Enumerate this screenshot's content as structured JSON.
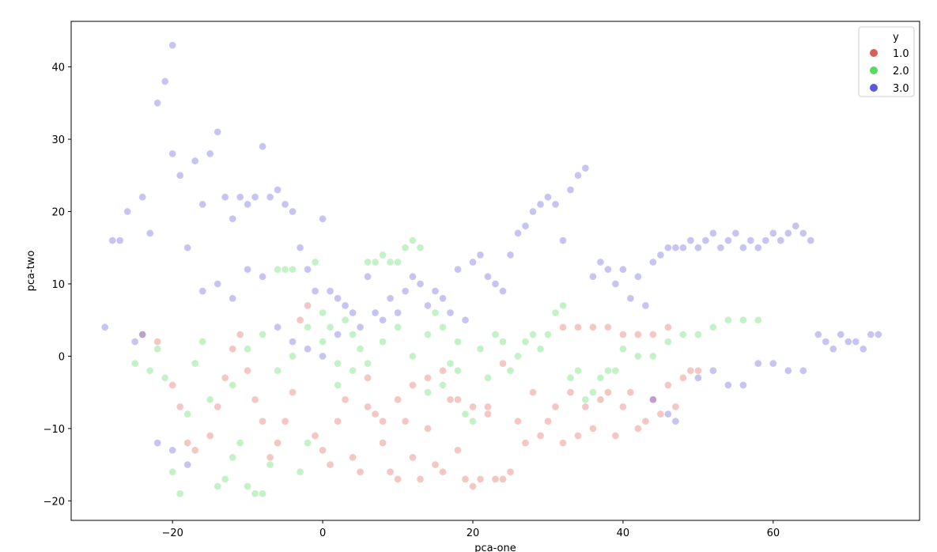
{
  "chart_data": {
    "type": "scatter",
    "title": "",
    "xlabel": "pca-one",
    "ylabel": "pca-two",
    "xlim": [
      -33.5,
      79.5
    ],
    "ylim": [
      -22.7,
      46.3
    ],
    "xticks": [
      -20,
      0,
      20,
      40,
      60
    ],
    "yticks": [
      -20,
      -10,
      0,
      10,
      20,
      30,
      40
    ],
    "grid": false,
    "legend": {
      "title": "y",
      "placement": "top-right",
      "entries": [
        "1.0",
        "2.0",
        "3.0"
      ]
    },
    "colors": {
      "1.0": "#db5f57",
      "2.0": "#57db5f",
      "3.0": "#5f57db"
    },
    "series": [
      {
        "name": "1.0",
        "points": [
          [
            -24,
            3
          ],
          [
            -22,
            2
          ],
          [
            -20,
            -4
          ],
          [
            -19,
            -7
          ],
          [
            -18,
            -12
          ],
          [
            -17,
            -13
          ],
          [
            -15,
            -11
          ],
          [
            -14,
            -7
          ],
          [
            -13,
            -3
          ],
          [
            -12,
            1
          ],
          [
            -11,
            3
          ],
          [
            -10,
            -2
          ],
          [
            -9,
            -6
          ],
          [
            -8,
            -9
          ],
          [
            -7,
            -14
          ],
          [
            -6,
            -12
          ],
          [
            -5,
            -9
          ],
          [
            -4,
            -5
          ],
          [
            -3,
            5
          ],
          [
            -2,
            7
          ],
          [
            -1,
            -11
          ],
          [
            0,
            -13
          ],
          [
            1,
            -15
          ],
          [
            2,
            -9
          ],
          [
            3,
            -6
          ],
          [
            4,
            -14
          ],
          [
            5,
            -16
          ],
          [
            6,
            -7
          ],
          [
            7,
            -8
          ],
          [
            8,
            -12
          ],
          [
            9,
            -16
          ],
          [
            10,
            -17
          ],
          [
            11,
            -9
          ],
          [
            12,
            -14
          ],
          [
            13,
            -17
          ],
          [
            14,
            -10
          ],
          [
            15,
            -15
          ],
          [
            16,
            -16
          ],
          [
            17,
            -6
          ],
          [
            18,
            -13
          ],
          [
            19,
            -17
          ],
          [
            20,
            -18
          ],
          [
            21,
            -17
          ],
          [
            22,
            -8
          ],
          [
            23,
            -17
          ],
          [
            24,
            -17
          ],
          [
            25,
            -16
          ],
          [
            26,
            -9
          ],
          [
            27,
            -12
          ],
          [
            28,
            -5
          ],
          [
            29,
            -11
          ],
          [
            30,
            -9
          ],
          [
            31,
            -7
          ],
          [
            32,
            -12
          ],
          [
            33,
            -5
          ],
          [
            34,
            -11
          ],
          [
            35,
            -7
          ],
          [
            36,
            -10
          ],
          [
            37,
            -6
          ],
          [
            38,
            -5
          ],
          [
            39,
            -11
          ],
          [
            40,
            -7
          ],
          [
            41,
            -5
          ],
          [
            42,
            -10
          ],
          [
            43,
            -9
          ],
          [
            44,
            -6
          ],
          [
            45,
            -8
          ],
          [
            46,
            -4
          ],
          [
            47,
            -7
          ],
          [
            48,
            -3
          ],
          [
            49,
            -2
          ],
          [
            50,
            -2
          ],
          [
            32,
            4
          ],
          [
            34,
            4
          ],
          [
            36,
            4
          ],
          [
            38,
            4
          ],
          [
            40,
            3
          ],
          [
            42,
            3
          ],
          [
            44,
            3
          ],
          [
            46,
            4
          ],
          [
            10,
            -6
          ],
          [
            12,
            -4
          ],
          [
            14,
            -3
          ],
          [
            16,
            -2
          ],
          [
            18,
            -6
          ],
          [
            20,
            -7
          ],
          [
            22,
            -7
          ],
          [
            24,
            -1
          ],
          [
            6,
            -3
          ],
          [
            8,
            -9
          ]
        ]
      },
      {
        "name": "2.0",
        "points": [
          [
            -25,
            -1
          ],
          [
            -23,
            -2
          ],
          [
            -22,
            1
          ],
          [
            -21,
            -3
          ],
          [
            -20,
            -16
          ],
          [
            -19,
            -19
          ],
          [
            -18,
            -8
          ],
          [
            -17,
            -1
          ],
          [
            -16,
            2
          ],
          [
            -15,
            -6
          ],
          [
            -14,
            -18
          ],
          [
            -13,
            -17
          ],
          [
            -12,
            -14
          ],
          [
            -11,
            -12
          ],
          [
            -10,
            -18
          ],
          [
            -9,
            -19
          ],
          [
            -8,
            -19
          ],
          [
            -7,
            -15
          ],
          [
            -6,
            12
          ],
          [
            -5,
            12
          ],
          [
            -4,
            12
          ],
          [
            -3,
            -16
          ],
          [
            -2,
            -12
          ],
          [
            -1,
            13
          ],
          [
            0,
            2
          ],
          [
            1,
            4
          ],
          [
            2,
            -1
          ],
          [
            3,
            5
          ],
          [
            4,
            -2
          ],
          [
            5,
            1
          ],
          [
            6,
            13
          ],
          [
            7,
            13
          ],
          [
            8,
            14
          ],
          [
            9,
            13
          ],
          [
            10,
            13
          ],
          [
            11,
            15
          ],
          [
            12,
            16
          ],
          [
            13,
            15
          ],
          [
            14,
            3
          ],
          [
            15,
            6
          ],
          [
            16,
            -4
          ],
          [
            17,
            -1
          ],
          [
            18,
            2
          ],
          [
            19,
            -8
          ],
          [
            20,
            -9
          ],
          [
            21,
            1
          ],
          [
            22,
            -3
          ],
          [
            23,
            3
          ],
          [
            24,
            2
          ],
          [
            25,
            -2
          ],
          [
            26,
            0
          ],
          [
            27,
            2
          ],
          [
            28,
            3
          ],
          [
            29,
            1
          ],
          [
            30,
            3
          ],
          [
            31,
            6
          ],
          [
            32,
            7
          ],
          [
            33,
            -3
          ],
          [
            34,
            -2
          ],
          [
            35,
            -6
          ],
          [
            36,
            -5
          ],
          [
            37,
            -3
          ],
          [
            38,
            -2
          ],
          [
            39,
            -2
          ],
          [
            40,
            1
          ],
          [
            42,
            0
          ],
          [
            44,
            0
          ],
          [
            46,
            2
          ],
          [
            48,
            3
          ],
          [
            50,
            3
          ],
          [
            52,
            4
          ],
          [
            54,
            5
          ],
          [
            56,
            5
          ],
          [
            58,
            5
          ],
          [
            -10,
            1
          ],
          [
            -8,
            3
          ],
          [
            -6,
            -2
          ],
          [
            -4,
            0
          ],
          [
            -2,
            4
          ],
          [
            0,
            6
          ],
          [
            2,
            -4
          ],
          [
            4,
            3
          ],
          [
            6,
            -1
          ],
          [
            8,
            2
          ],
          [
            10,
            4
          ],
          [
            12,
            0
          ],
          [
            14,
            -5
          ],
          [
            16,
            4
          ],
          [
            18,
            -2
          ],
          [
            -12,
            -4
          ]
        ]
      },
      {
        "name": "3.0",
        "points": [
          [
            -29,
            4
          ],
          [
            -28,
            16
          ],
          [
            -27,
            16
          ],
          [
            -26,
            20
          ],
          [
            -25,
            2
          ],
          [
            -24,
            22
          ],
          [
            -23,
            17
          ],
          [
            -22,
            35
          ],
          [
            -21,
            38
          ],
          [
            -20,
            43
          ],
          [
            -20,
            28
          ],
          [
            -19,
            25
          ],
          [
            -18,
            15
          ],
          [
            -17,
            27
          ],
          [
            -16,
            21
          ],
          [
            -15,
            28
          ],
          [
            -14,
            31
          ],
          [
            -13,
            22
          ],
          [
            -12,
            19
          ],
          [
            -11,
            22
          ],
          [
            -10,
            21
          ],
          [
            -9,
            22
          ],
          [
            -8,
            29
          ],
          [
            -7,
            22
          ],
          [
            -6,
            23
          ],
          [
            -5,
            21
          ],
          [
            -4,
            20
          ],
          [
            -3,
            15
          ],
          [
            -2,
            12
          ],
          [
            -1,
            9
          ],
          [
            0,
            19
          ],
          [
            1,
            9
          ],
          [
            2,
            8
          ],
          [
            3,
            7
          ],
          [
            4,
            6
          ],
          [
            5,
            4
          ],
          [
            6,
            11
          ],
          [
            7,
            6
          ],
          [
            8,
            5
          ],
          [
            9,
            8
          ],
          [
            10,
            6
          ],
          [
            11,
            9
          ],
          [
            12,
            11
          ],
          [
            13,
            10
          ],
          [
            14,
            7
          ],
          [
            15,
            9
          ],
          [
            16,
            8
          ],
          [
            17,
            6
          ],
          [
            18,
            12
          ],
          [
            19,
            5
          ],
          [
            20,
            13
          ],
          [
            21,
            14
          ],
          [
            22,
            11
          ],
          [
            23,
            10
          ],
          [
            24,
            9
          ],
          [
            25,
            14
          ],
          [
            26,
            17
          ],
          [
            27,
            18
          ],
          [
            28,
            20
          ],
          [
            29,
            21
          ],
          [
            30,
            22
          ],
          [
            31,
            21
          ],
          [
            32,
            16
          ],
          [
            33,
            23
          ],
          [
            34,
            25
          ],
          [
            35,
            26
          ],
          [
            36,
            11
          ],
          [
            37,
            13
          ],
          [
            38,
            12
          ],
          [
            39,
            10
          ],
          [
            40,
            12
          ],
          [
            41,
            8
          ],
          [
            42,
            11
          ],
          [
            43,
            7
          ],
          [
            44,
            13
          ],
          [
            45,
            14
          ],
          [
            46,
            15
          ],
          [
            47,
            15
          ],
          [
            48,
            15
          ],
          [
            49,
            16
          ],
          [
            50,
            15
          ],
          [
            51,
            16
          ],
          [
            52,
            17
          ],
          [
            53,
            15
          ],
          [
            54,
            16
          ],
          [
            55,
            17
          ],
          [
            56,
            15
          ],
          [
            57,
            16
          ],
          [
            58,
            15
          ],
          [
            59,
            16
          ],
          [
            60,
            17
          ],
          [
            61,
            16
          ],
          [
            62,
            17
          ],
          [
            63,
            18
          ],
          [
            64,
            17
          ],
          [
            65,
            16
          ],
          [
            66,
            3
          ],
          [
            67,
            2
          ],
          [
            68,
            1
          ],
          [
            69,
            3
          ],
          [
            70,
            2
          ],
          [
            71,
            2
          ],
          [
            72,
            1
          ],
          [
            73,
            3
          ],
          [
            74,
            3
          ],
          [
            50,
            -3
          ],
          [
            52,
            -2
          ],
          [
            54,
            -4
          ],
          [
            56,
            -4
          ],
          [
            58,
            -1
          ],
          [
            60,
            -1
          ],
          [
            62,
            -2
          ],
          [
            64,
            -2
          ],
          [
            44,
            -6
          ],
          [
            46,
            -8
          ],
          [
            47,
            -9
          ],
          [
            -22,
            -12
          ],
          [
            -20,
            -13
          ],
          [
            -18,
            -15
          ],
          [
            -24,
            3
          ],
          [
            -16,
            9
          ],
          [
            -14,
            10
          ],
          [
            -12,
            8
          ],
          [
            -10,
            12
          ],
          [
            -8,
            11
          ],
          [
            -6,
            4
          ],
          [
            -4,
            2
          ],
          [
            -2,
            1
          ],
          [
            0,
            0
          ],
          [
            2,
            3
          ]
        ]
      }
    ]
  }
}
